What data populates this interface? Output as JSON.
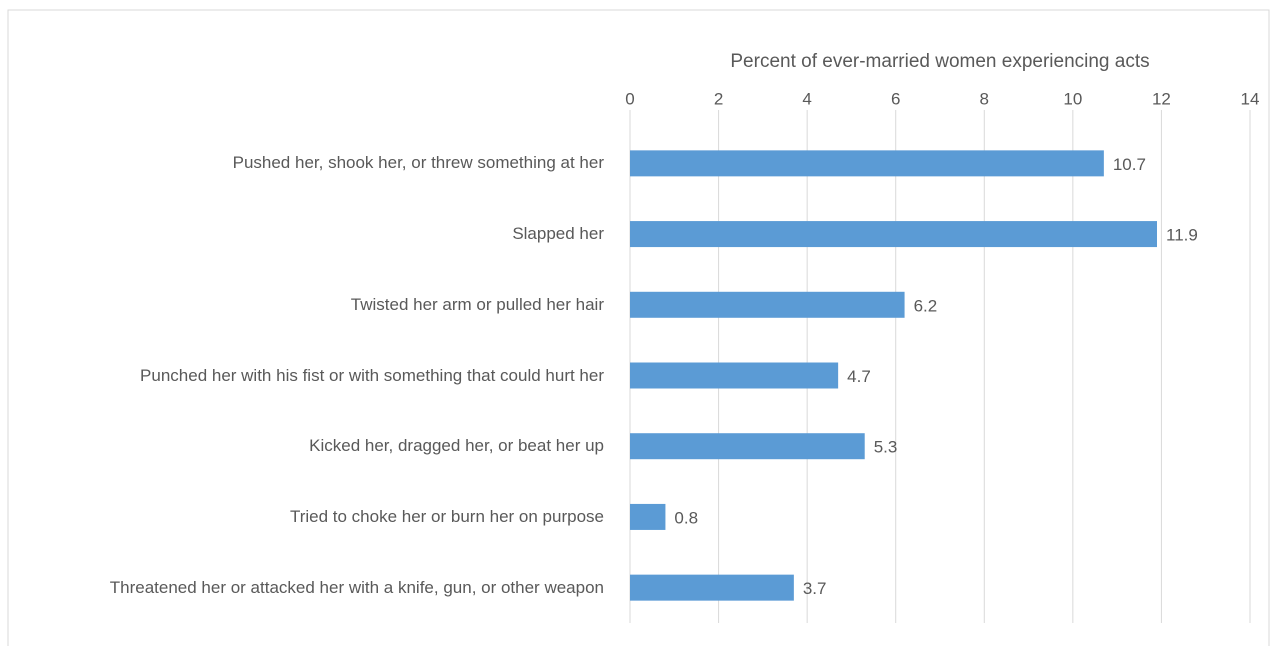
{
  "chart_data": {
    "type": "bar",
    "orientation": "horizontal",
    "x_label": "Percent of ever-married women experiencing acts",
    "categories": [
      "Pushed her, shook her, or threw something at her",
      "Slapped her",
      "Twisted her arm or pulled her hair",
      "Punched her with his fist or with something that could hurt her",
      "Kicked her, dragged her, or beat her up",
      "Tried to choke her or burn her on purpose",
      "Threatened her or attacked her with a knife, gun, or other weapon"
    ],
    "values": [
      10.7,
      11.9,
      6.2,
      4.7,
      5.3,
      0.8,
      3.7
    ],
    "color": "#5b9bd5",
    "xlim": [
      0,
      14
    ],
    "xticks": [
      0,
      2,
      4,
      6,
      8,
      10,
      12,
      14
    ],
    "grid": true
  }
}
